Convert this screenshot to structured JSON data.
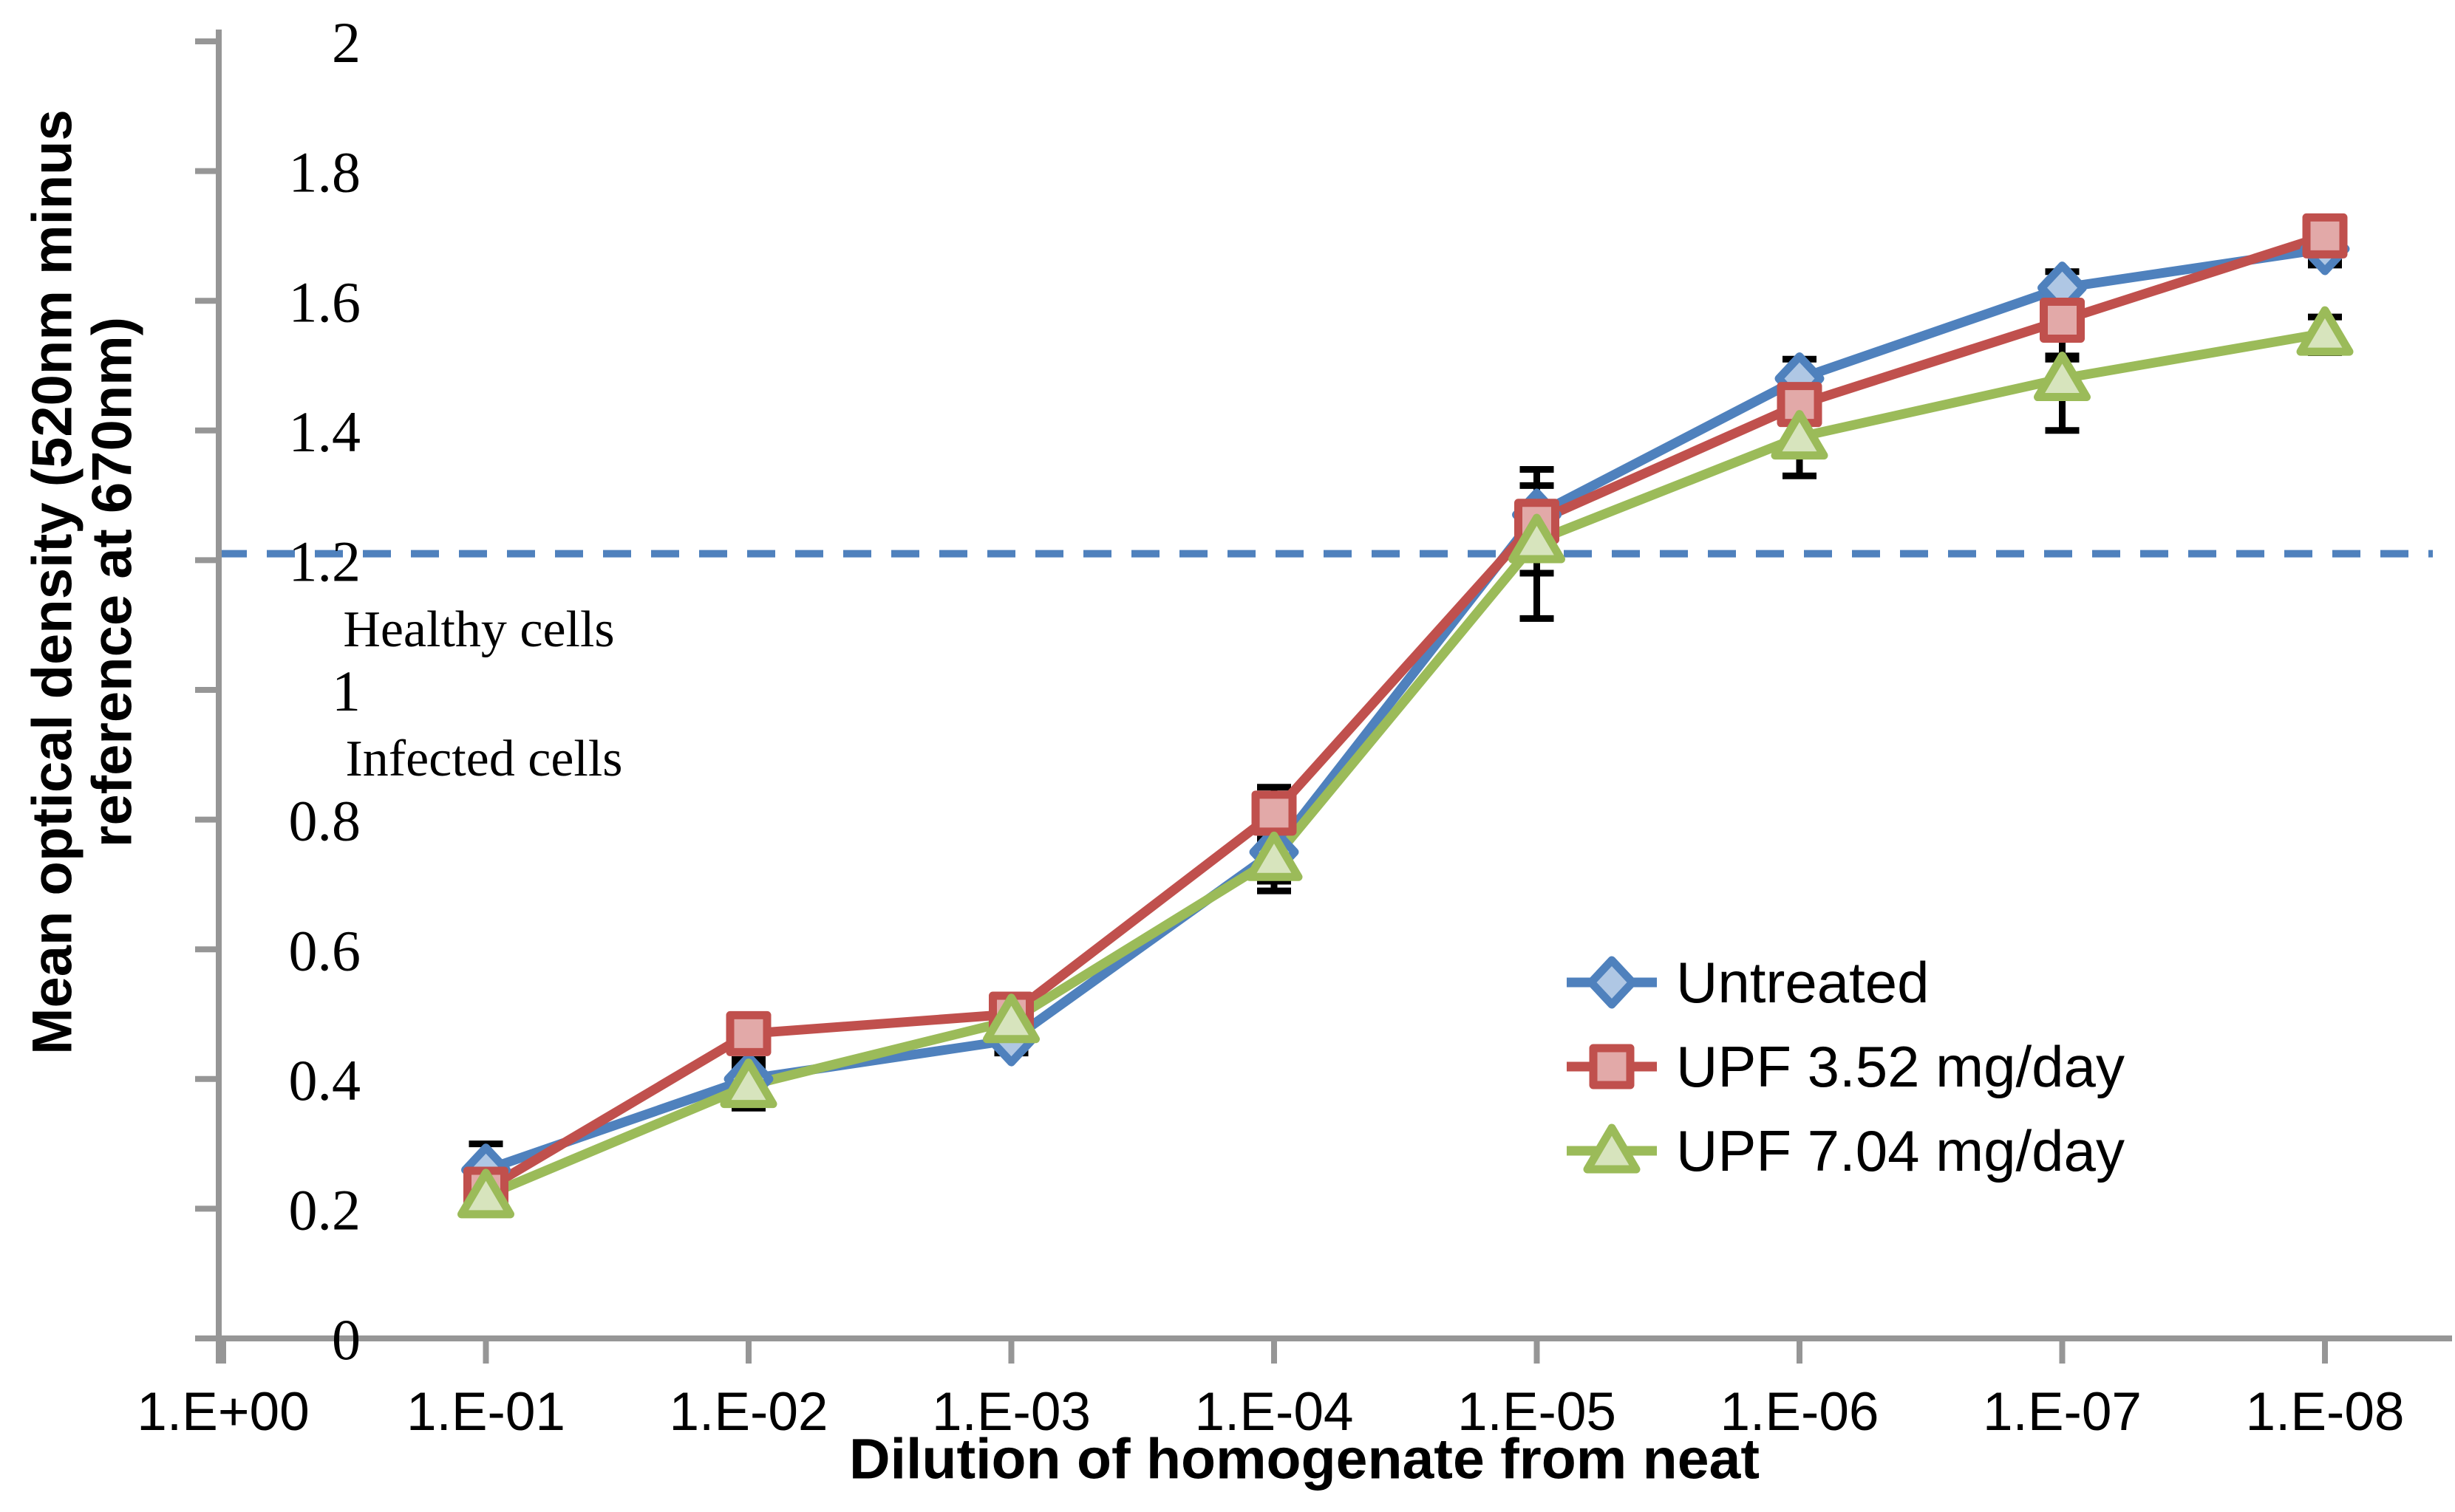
{
  "chart_data": {
    "type": "line",
    "title": "",
    "xlabel": "Dilution of homogenate from neat",
    "ylabel": "Mean optical density (520nm minus\nreference at 670nm)",
    "x_categories": [
      "1.E+00",
      "1.E-01",
      "1.E-02",
      "1.E-03",
      "1.E-04",
      "1.E-05",
      "1.E-06",
      "1.E-07",
      "1.E-08"
    ],
    "y_tick_labels": [
      "2",
      "1.8",
      "1.6",
      "1.4",
      "1.2",
      "1",
      "0.8",
      "0.6",
      "0.4",
      "0.2",
      "0"
    ],
    "y_tick_values": [
      2,
      1.8,
      1.6,
      1.4,
      1.2,
      1,
      0.8,
      0.6,
      0.4,
      0.2,
      0
    ],
    "ylim": [
      0,
      2
    ],
    "grid": "off",
    "legend_position": "inside-right",
    "axis_color": "#969696",
    "error_bar_color": "#000000",
    "threshold": {
      "value": 1.21,
      "style": "dashed",
      "color": "#4F81BD",
      "label_above": "Healthy cells",
      "label_below": "Infected cells"
    },
    "series": [
      {
        "name": "Untreated",
        "marker": "diamond",
        "color": "#4F81BD",
        "marker_fill": "#AFC7E4",
        "values": [
          null,
          0.26,
          0.4,
          0.46,
          0.75,
          1.27,
          1.48,
          1.62,
          1.68
        ],
        "err_up": [
          null,
          0.04,
          0.03,
          0.015,
          0.02,
          0.07,
          0.03,
          0.025,
          0.02
        ],
        "err_down": [
          null,
          0.05,
          0.04,
          0.02,
          0.045,
          0.16,
          0.03,
          0.03,
          0.02
        ]
      },
      {
        "name": "UPF 3.52 mg/day",
        "marker": "square",
        "color": "#C0504D",
        "marker_fill": "#E2A9A8",
        "values": [
          null,
          0.23,
          0.47,
          0.5,
          0.81,
          1.26,
          1.44,
          1.57,
          1.7
        ],
        "err_up": [
          null,
          0.02,
          0.02,
          0.02,
          0.04,
          0.055,
          0.02,
          0.04,
          0.025
        ],
        "err_down": [
          null,
          0.02,
          0.02,
          0.02,
          0.04,
          0.055,
          0.02,
          0.06,
          0.045
        ]
      },
      {
        "name": "UPF 7.04 mg/day",
        "marker": "triangle",
        "color": "#9BBB59",
        "marker_fill": "#D7E4BD",
        "values": [
          null,
          0.22,
          0.39,
          0.49,
          0.74,
          1.23,
          1.39,
          1.48,
          1.55
        ],
        "err_up": [
          null,
          0.02,
          0.03,
          0.02,
          0.03,
          0.04,
          0.04,
          0.035,
          0.025
        ],
        "err_down": [
          null,
          0.02,
          0.035,
          0.02,
          0.05,
          0.05,
          0.06,
          0.08,
          0.03
        ]
      }
    ]
  }
}
